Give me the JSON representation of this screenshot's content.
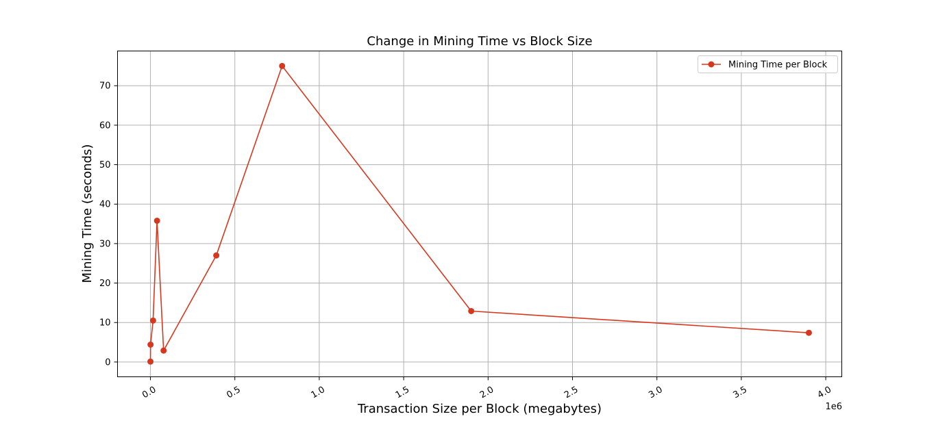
{
  "chart_data": {
    "type": "line",
    "title": "Change in Mining Time vs Block Size",
    "xlabel": "Transaction Size per Block (megabytes)",
    "ylabel": "Mining Time (seconds)",
    "x_offset_label": "1e6",
    "xlim": [
      -0.195,
      4.095
    ],
    "ylim": [
      -3.75,
      78.8
    ],
    "xticks": [
      0.0,
      0.5,
      1.0,
      1.5,
      2.0,
      2.5,
      3.0,
      3.5,
      4.0
    ],
    "xtick_labels": [
      "0.0",
      "0.5",
      "1.0",
      "1.5",
      "2.0",
      "2.5",
      "3.0",
      "3.5",
      "4.0"
    ],
    "yticks": [
      0,
      10,
      20,
      30,
      40,
      50,
      60,
      70
    ],
    "ytick_labels": [
      "0",
      "10",
      "20",
      "30",
      "40",
      "50",
      "60",
      "70"
    ],
    "grid": true,
    "legend_position": "top-right",
    "series": [
      {
        "name": "Mining Time per Block",
        "color": "#d6381f",
        "x": [
          0.0,
          0.0005,
          0.0156,
          0.039,
          0.078,
          0.39,
          0.78,
          1.9,
          3.9
        ],
        "y": [
          0.1,
          4.4,
          10.5,
          35.8,
          2.9,
          27.0,
          75.0,
          12.9,
          7.4
        ]
      }
    ]
  }
}
